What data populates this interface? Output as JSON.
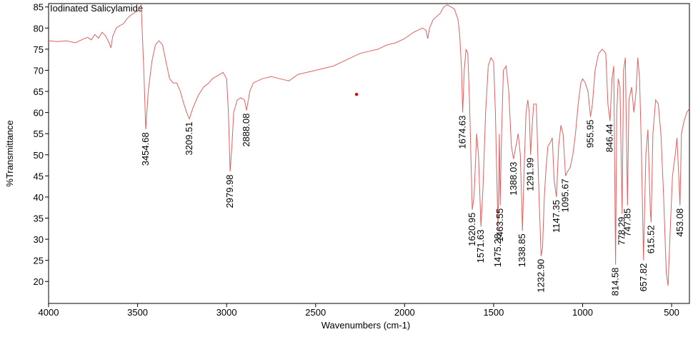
{
  "chart_data": {
    "type": "line",
    "title": "Iodinated Salicylamide",
    "xlabel": "Wavenumbers (cm-1)",
    "ylabel": "%Transmittance",
    "color": "#e06060",
    "x": [
      4000,
      3950,
      3900,
      3850,
      3800,
      3780,
      3760,
      3740,
      3720,
      3700,
      3680,
      3660,
      3650,
      3640,
      3620,
      3600,
      3580,
      3560,
      3540,
      3520,
      3500,
      3480,
      3465,
      3454,
      3440,
      3420,
      3400,
      3380,
      3360,
      3340,
      3320,
      3300,
      3280,
      3260,
      3240,
      3220,
      3209,
      3190,
      3160,
      3130,
      3100,
      3080,
      3060,
      3040,
      3020,
      3000,
      2990,
      2980,
      2970,
      2960,
      2940,
      2920,
      2900,
      2888,
      2870,
      2850,
      2800,
      2750,
      2700,
      2650,
      2600,
      2550,
      2500,
      2450,
      2400,
      2350,
      2300,
      2250,
      2200,
      2150,
      2100,
      2050,
      2000,
      1950,
      1900,
      1880,
      1870,
      1860,
      1840,
      1800,
      1780,
      1760,
      1740,
      1720,
      1700,
      1690,
      1680,
      1674,
      1665,
      1655,
      1645,
      1635,
      1625,
      1620,
      1610,
      1595,
      1585,
      1571,
      1560,
      1545,
      1530,
      1515,
      1500,
      1490,
      1475,
      1468,
      1463,
      1455,
      1445,
      1430,
      1415,
      1400,
      1388,
      1375,
      1362,
      1350,
      1338,
      1330,
      1318,
      1308,
      1300,
      1292,
      1285,
      1275,
      1260,
      1245,
      1233,
      1225,
      1215,
      1205,
      1195,
      1180,
      1170,
      1160,
      1147,
      1135,
      1122,
      1110,
      1096,
      1085,
      1070,
      1055,
      1040,
      1025,
      1010,
      1000,
      985,
      970,
      956,
      945,
      930,
      910,
      890,
      870,
      858,
      846,
      835,
      825,
      815,
      808,
      800,
      790,
      778,
      770,
      760,
      748,
      740,
      725,
      712,
      700,
      690,
      680,
      670,
      658,
      645,
      633,
      620,
      615,
      605,
      590,
      575,
      560,
      545,
      530,
      520,
      510,
      495,
      480,
      470,
      460,
      453,
      445,
      430,
      415,
      400
    ],
    "y": [
      77,
      76.8,
      77,
      76.5,
      77.5,
      77.8,
      77.2,
      78.5,
      77.6,
      79,
      78.2,
      76.5,
      75.3,
      78,
      80,
      80.6,
      81,
      82.2,
      83,
      83.6,
      84,
      85.5,
      70,
      56,
      65,
      72,
      76,
      77,
      76,
      72,
      68,
      67,
      67,
      65,
      62,
      59.5,
      58.5,
      61,
      64,
      66,
      67,
      68,
      68.5,
      69,
      69.5,
      68,
      60,
      46,
      52,
      60,
      63,
      63.5,
      63,
      60.5,
      65,
      67,
      68,
      68.5,
      68,
      67.5,
      69,
      69.5,
      70,
      70.5,
      71,
      72,
      73,
      74,
      74.5,
      75,
      76,
      76.5,
      77.5,
      79,
      80,
      79.5,
      77.5,
      80,
      82,
      83.5,
      85,
      85.5,
      85,
      84.5,
      82,
      78,
      70,
      60,
      70,
      75,
      74,
      62,
      45,
      37,
      40,
      55,
      50,
      33,
      42,
      60,
      71,
      73,
      72,
      60,
      32,
      55,
      38,
      55,
      70,
      71,
      65,
      52,
      49,
      52,
      55,
      50,
      32,
      45,
      60,
      63,
      60,
      50,
      56,
      62,
      62,
      40,
      26,
      28,
      40,
      47,
      52,
      53,
      54,
      44,
      40,
      52,
      57,
      55,
      45,
      46,
      47,
      50,
      55,
      62,
      67,
      68,
      67,
      65,
      59,
      62,
      70,
      74,
      75,
      74,
      62,
      58,
      68,
      71,
      24,
      60,
      68,
      66,
      36,
      70,
      73,
      38,
      63,
      66,
      60,
      65,
      73,
      68,
      52,
      25,
      50,
      56,
      37,
      34,
      55,
      63,
      62,
      55,
      40,
      22,
      19,
      30,
      45,
      50,
      54,
      45,
      38,
      55,
      58,
      60,
      61
    ],
    "xlim": [
      4000,
      400
    ],
    "ylim": [
      14.8,
      85.8
    ],
    "xticks": [
      4000,
      3500,
      3000,
      2500,
      2000,
      1500,
      1000,
      500
    ],
    "yticks": [
      20,
      25,
      30,
      35,
      40,
      45,
      50,
      55,
      60,
      65,
      70,
      75,
      80,
      85
    ],
    "peaks": [
      {
        "x": 3454.68,
        "y": 56
      },
      {
        "x": 3209.51,
        "y": 58.5
      },
      {
        "x": 2979.98,
        "y": 46
      },
      {
        "x": 2888.08,
        "y": 60.5
      },
      {
        "x": 1674.63,
        "y": 60
      },
      {
        "x": 1620.95,
        "y": 37
      },
      {
        "x": 1571.63,
        "y": 33
      },
      {
        "x": 1475.28,
        "y": 32
      },
      {
        "x": 1463.55,
        "y": 38
      },
      {
        "x": 1388.03,
        "y": 49
      },
      {
        "x": 1338.85,
        "y": 32
      },
      {
        "x": 1291.99,
        "y": 50
      },
      {
        "x": 1232.9,
        "y": 26,
        "label": "1232.90"
      },
      {
        "x": 1147.35,
        "y": 40
      },
      {
        "x": 1095.67,
        "y": 45
      },
      {
        "x": 955.95,
        "y": 59
      },
      {
        "x": 846.44,
        "y": 58
      },
      {
        "x": 814.58,
        "y": 24
      },
      {
        "x": 778.29,
        "y": 36
      },
      {
        "x": 747.85,
        "y": 38
      },
      {
        "x": 657.82,
        "y": 25
      },
      {
        "x": 615.52,
        "y": 34
      },
      {
        "x": 453.08,
        "y": 38
      }
    ],
    "marker": {
      "x": 2270,
      "y": 64.3,
      "color": "#e00000"
    }
  }
}
